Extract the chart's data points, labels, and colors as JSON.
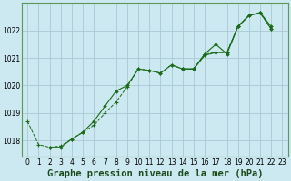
{
  "background_color": "#cce8f0",
  "grid_color": "#aac8d4",
  "line_color": "#1a6b1a",
  "title": "Graphe pression niveau de la mer (hPa)",
  "xlim": [
    -0.5,
    23.5
  ],
  "ylim": [
    1017.4,
    1023.0
  ],
  "yticks": [
    1018,
    1019,
    1020,
    1021,
    1022
  ],
  "xticks": [
    0,
    1,
    2,
    3,
    4,
    5,
    6,
    7,
    8,
    9,
    10,
    11,
    12,
    13,
    14,
    15,
    16,
    17,
    18,
    19,
    20,
    21,
    22,
    23
  ],
  "series": [
    {
      "linestyle": "--",
      "marker": "+",
      "x": [
        0,
        1,
        2,
        3,
        4,
        5,
        6,
        7,
        8,
        9,
        10,
        11,
        12,
        13,
        14,
        15,
        16,
        17,
        18,
        19,
        20,
        21,
        22
      ],
      "y": [
        1018.7,
        1017.85,
        1017.75,
        1017.8,
        1018.05,
        1018.3,
        1018.55,
        1019.0,
        1019.4,
        1019.95,
        1020.6,
        1020.55,
        1020.45,
        1020.75,
        1020.6,
        1020.6,
        1021.15,
        1021.2,
        1021.2,
        1022.15,
        1022.55,
        1022.65,
        1022.05
      ]
    },
    {
      "linestyle": "-",
      "marker": "D",
      "x": [
        2,
        3,
        4,
        5,
        6,
        7,
        8,
        9,
        10,
        11,
        12,
        13,
        14,
        15,
        16,
        17,
        18,
        19,
        20,
        21,
        22
      ],
      "y": [
        1017.75,
        1017.75,
        1018.05,
        1018.3,
        1018.7,
        1019.25,
        1019.8,
        1020.0,
        1020.6,
        1020.55,
        1020.45,
        1020.75,
        1020.6,
        1020.6,
        1021.15,
        1021.5,
        1021.15,
        1022.15,
        1022.55,
        1022.65,
        1022.05
      ]
    },
    {
      "linestyle": "-",
      "marker": "D",
      "x": [
        14,
        15,
        16,
        17,
        18,
        19,
        20,
        21,
        22
      ],
      "y": [
        1020.6,
        1020.6,
        1021.1,
        1021.2,
        1021.2,
        1022.15,
        1022.55,
        1022.65,
        1022.15
      ]
    }
  ],
  "title_fontsize": 7.5,
  "tick_fontsize": 5.5
}
